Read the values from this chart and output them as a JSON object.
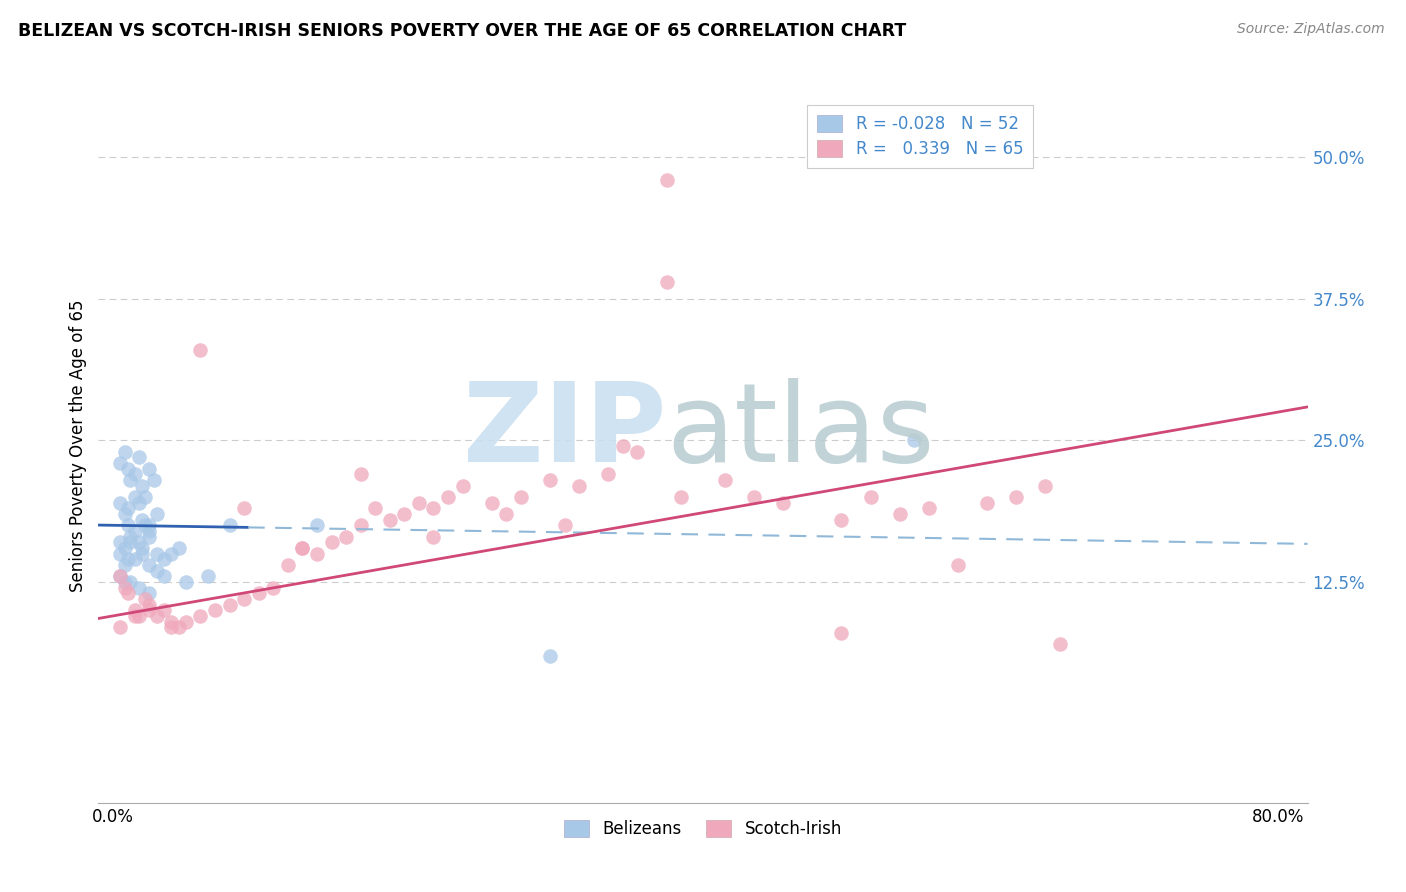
{
  "title": "BELIZEAN VS SCOTCH-IRISH SENIORS POVERTY OVER THE AGE OF 65 CORRELATION CHART",
  "source": "Source: ZipAtlas.com",
  "ylabel": "Seniors Poverty Over the Age of 65",
  "xlim": [
    -0.01,
    0.82
  ],
  "ylim": [
    -0.07,
    0.56
  ],
  "xticks": [
    0.0,
    0.8
  ],
  "xticklabels": [
    "0.0%",
    "80.0%"
  ],
  "yticks": [
    0.125,
    0.25,
    0.375,
    0.5
  ],
  "yticklabels": [
    "12.5%",
    "25.0%",
    "37.5%",
    "50.0%"
  ],
  "belizean_color": "#a8c8e8",
  "scotch_irish_color": "#f0a8bc",
  "belizean_line_color": "#3060b0",
  "scotch_irish_line_color": "#d04878",
  "belizean_dashed_color": "#90b8d8",
  "watermark_zip_color": "#c8dff0",
  "watermark_atlas_color": "#b8ccd0",
  "legend_color": "#4488cc",
  "bel_x": [
    0.005,
    0.008,
    0.01,
    0.012,
    0.015,
    0.018,
    0.02,
    0.022,
    0.025,
    0.028,
    0.005,
    0.008,
    0.01,
    0.015,
    0.018,
    0.02,
    0.025,
    0.03,
    0.01,
    0.012,
    0.015,
    0.018,
    0.022,
    0.025,
    0.005,
    0.008,
    0.012,
    0.02,
    0.025,
    0.03,
    0.005,
    0.008,
    0.01,
    0.015,
    0.02,
    0.025,
    0.03,
    0.035,
    0.04,
    0.045,
    0.005,
    0.008,
    0.012,
    0.018,
    0.025,
    0.035,
    0.05,
    0.065,
    0.08,
    0.14,
    0.3,
    0.55
  ],
  "bel_y": [
    0.23,
    0.24,
    0.225,
    0.215,
    0.22,
    0.235,
    0.21,
    0.2,
    0.225,
    0.215,
    0.195,
    0.185,
    0.19,
    0.2,
    0.195,
    0.18,
    0.175,
    0.185,
    0.175,
    0.165,
    0.17,
    0.16,
    0.175,
    0.17,
    0.16,
    0.155,
    0.16,
    0.155,
    0.165,
    0.15,
    0.15,
    0.14,
    0.145,
    0.145,
    0.15,
    0.14,
    0.135,
    0.145,
    0.15,
    0.155,
    0.13,
    0.125,
    0.125,
    0.12,
    0.115,
    0.13,
    0.125,
    0.13,
    0.175,
    0.175,
    0.06,
    0.25
  ],
  "sco_x": [
    0.005,
    0.008,
    0.01,
    0.015,
    0.018,
    0.022,
    0.025,
    0.03,
    0.035,
    0.04,
    0.045,
    0.05,
    0.06,
    0.07,
    0.08,
    0.09,
    0.1,
    0.11,
    0.12,
    0.13,
    0.14,
    0.15,
    0.16,
    0.17,
    0.18,
    0.19,
    0.2,
    0.21,
    0.22,
    0.23,
    0.24,
    0.26,
    0.28,
    0.3,
    0.32,
    0.34,
    0.36,
    0.38,
    0.39,
    0.38,
    0.42,
    0.44,
    0.46,
    0.5,
    0.52,
    0.54,
    0.56,
    0.58,
    0.6,
    0.62,
    0.64,
    0.005,
    0.015,
    0.025,
    0.04,
    0.06,
    0.09,
    0.13,
    0.17,
    0.22,
    0.27,
    0.31,
    0.35,
    0.5,
    0.65
  ],
  "sco_y": [
    0.13,
    0.12,
    0.115,
    0.1,
    0.095,
    0.11,
    0.105,
    0.095,
    0.1,
    0.09,
    0.085,
    0.09,
    0.095,
    0.1,
    0.105,
    0.11,
    0.115,
    0.12,
    0.14,
    0.155,
    0.15,
    0.16,
    0.165,
    0.175,
    0.19,
    0.18,
    0.185,
    0.195,
    0.19,
    0.2,
    0.21,
    0.195,
    0.2,
    0.215,
    0.21,
    0.22,
    0.24,
    0.48,
    0.2,
    0.39,
    0.215,
    0.2,
    0.195,
    0.18,
    0.2,
    0.185,
    0.19,
    0.14,
    0.195,
    0.2,
    0.21,
    0.085,
    0.095,
    0.1,
    0.085,
    0.33,
    0.19,
    0.155,
    0.22,
    0.165,
    0.185,
    0.175,
    0.245,
    0.08,
    0.07
  ]
}
